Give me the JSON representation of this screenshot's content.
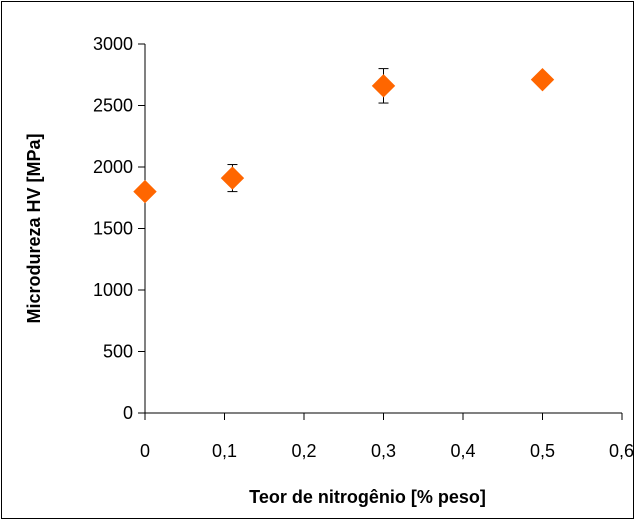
{
  "chart_data": {
    "type": "scatter",
    "title": "",
    "xlabel": "Teor de nitrogênio [% peso]",
    "ylabel": "Microdureza HV [MPa]",
    "xlim": [
      0,
      0.6
    ],
    "ylim": [
      0,
      3000
    ],
    "x_ticks": [
      0,
      0.1,
      0.2,
      0.3,
      0.4,
      0.5,
      0.6
    ],
    "x_tick_labels": [
      "0",
      "0,1",
      "0,2",
      "0,3",
      "0,4",
      "0,5",
      "0,6"
    ],
    "y_ticks": [
      0,
      500,
      1000,
      1500,
      2000,
      2500,
      3000
    ],
    "y_tick_labels": [
      "0",
      "500",
      "1000",
      "1500",
      "2000",
      "2500",
      "3000"
    ],
    "grid": false,
    "legend": "none",
    "marker": "diamond",
    "series": [
      {
        "x": [
          0,
          0.11,
          0.3,
          0.5
        ],
        "y": [
          1800,
          1910,
          2660,
          2710
        ],
        "error_low": [
          0,
          110,
          140,
          0
        ],
        "error_high": [
          0,
          110,
          140,
          0
        ]
      }
    ]
  },
  "colors": {
    "marker": "#ff6600",
    "axis": "#000000",
    "background": "#ffffff"
  }
}
